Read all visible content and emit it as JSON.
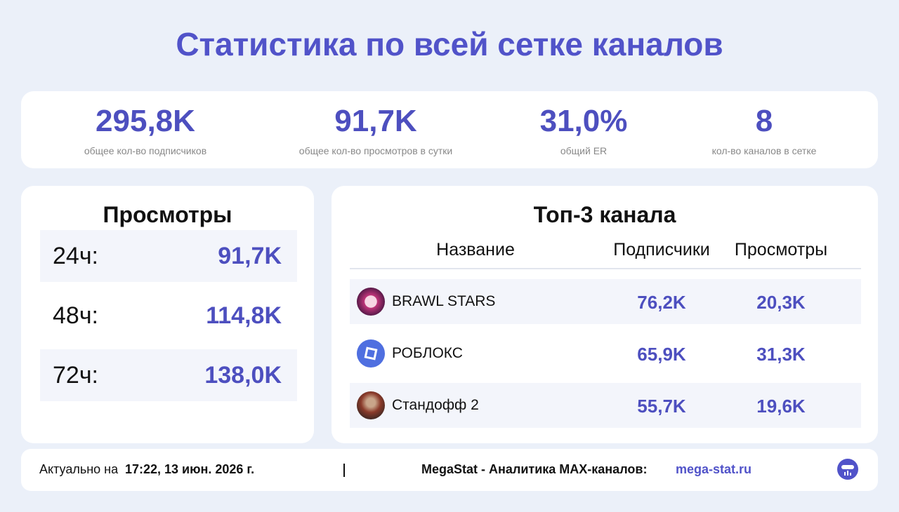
{
  "header": {
    "title": "Статистика по всей сетке каналов"
  },
  "summary": [
    {
      "value": "295,8K",
      "label": "общее кол-во подписчиков"
    },
    {
      "value": "91,7K",
      "label": "общее кол-во просмотров в сутки"
    },
    {
      "value": "31,0%",
      "label": "общий ER"
    },
    {
      "value": "8",
      "label": "кол-во каналов в сетке"
    }
  ],
  "views": {
    "title": "Просмотры",
    "rows": [
      [
        "24ч:",
        "91,7K"
      ],
      [
        "48ч:",
        "114,8K"
      ],
      [
        "72ч:",
        "138,0K"
      ]
    ]
  },
  "top": {
    "title": "Топ-3 канала",
    "columns": [
      "Название",
      "Подписчики",
      "Просмотры"
    ],
    "rows": [
      [
        "BRAWL STARS",
        "76,2K",
        "20,3K"
      ],
      [
        "РОБЛОКС",
        "65,9K",
        "31,3K"
      ],
      [
        "Стандофф 2",
        "55,7K",
        "19,6K"
      ]
    ]
  },
  "footer": {
    "prefix": "Актуально на",
    "timestamp": "17:22, 13 июн. 2026 г.",
    "brand": "MegaStat - Аналитика MAX-каналов:",
    "link": "mega-stat.ru"
  }
}
